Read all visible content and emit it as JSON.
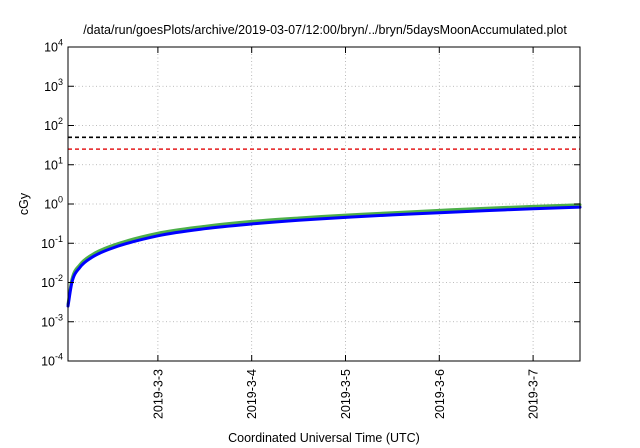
{
  "chart_data": {
    "type": "line",
    "title": "/data/run/goesPlots/archive/2019-03-07/12:00/bryn/../bryn/5daysMoonAccumulated.plot",
    "xlabel": "Coordinated Universal Time (UTC)",
    "ylabel": "cGy",
    "y_scale": "log",
    "ylim": [
      0.0001,
      10000
    ],
    "xlim": [
      "2019-03-02T01:00",
      "2019-03-07T12:00"
    ],
    "grid": true,
    "legend": "none",
    "y_ticks": [
      {
        "value": 0.0001,
        "base": "10",
        "exp": "-4"
      },
      {
        "value": 0.001,
        "base": "10",
        "exp": "-3"
      },
      {
        "value": 0.01,
        "base": "10",
        "exp": "-2"
      },
      {
        "value": 0.1,
        "base": "10",
        "exp": "-1"
      },
      {
        "value": 1,
        "base": "10",
        "exp": "0"
      },
      {
        "value": 10,
        "base": "10",
        "exp": "1"
      },
      {
        "value": 100,
        "base": "10",
        "exp": "2"
      },
      {
        "value": 1000,
        "base": "10",
        "exp": "3"
      },
      {
        "value": 10000,
        "base": "10",
        "exp": "4"
      }
    ],
    "x_ticks": [
      {
        "value": "2019-03-03T00:00",
        "label": "2019-3-3"
      },
      {
        "value": "2019-03-04T00:00",
        "label": "2019-3-4"
      },
      {
        "value": "2019-03-05T00:00",
        "label": "2019-3-5"
      },
      {
        "value": "2019-03-06T00:00",
        "label": "2019-3-6"
      },
      {
        "value": "2019-03-07T00:00",
        "label": "2019-3-7"
      }
    ],
    "reference_lines": [
      {
        "value": 50,
        "color": "#000000",
        "style": "dashed"
      },
      {
        "value": 25,
        "color": "#e41a1c",
        "style": "dashed"
      }
    ],
    "series": [
      {
        "color": "#4daf4a",
        "x": [
          "2019-03-02T01:00",
          "2019-03-02T02:00",
          "2019-03-02T04:00",
          "2019-03-02T07:00",
          "2019-03-02T12:00",
          "2019-03-03T00:00",
          "2019-03-03T12:00",
          "2019-03-04T00:00",
          "2019-03-04T12:00",
          "2019-03-05T00:00",
          "2019-03-05T12:00",
          "2019-03-06T00:00",
          "2019-03-06T12:00",
          "2019-03-07T00:00",
          "2019-03-07T12:00"
        ],
        "y": [
          0.0028,
          0.012,
          0.028,
          0.05,
          0.085,
          0.18,
          0.27,
          0.36,
          0.44,
          0.52,
          0.6,
          0.69,
          0.78,
          0.87,
          0.96
        ]
      },
      {
        "color": "#0000ff",
        "x": [
          "2019-03-02T01:00",
          "2019-03-02T02:00",
          "2019-03-02T04:00",
          "2019-03-02T07:00",
          "2019-03-02T12:00",
          "2019-03-03T00:00",
          "2019-03-03T12:00",
          "2019-03-04T00:00",
          "2019-03-04T12:00",
          "2019-03-05T00:00",
          "2019-03-05T12:00",
          "2019-03-06T00:00",
          "2019-03-06T12:00",
          "2019-03-07T00:00",
          "2019-03-07T12:00"
        ],
        "y": [
          0.0025,
          0.01,
          0.024,
          0.043,
          0.073,
          0.155,
          0.235,
          0.31,
          0.385,
          0.455,
          0.53,
          0.6,
          0.68,
          0.755,
          0.83
        ]
      }
    ]
  }
}
